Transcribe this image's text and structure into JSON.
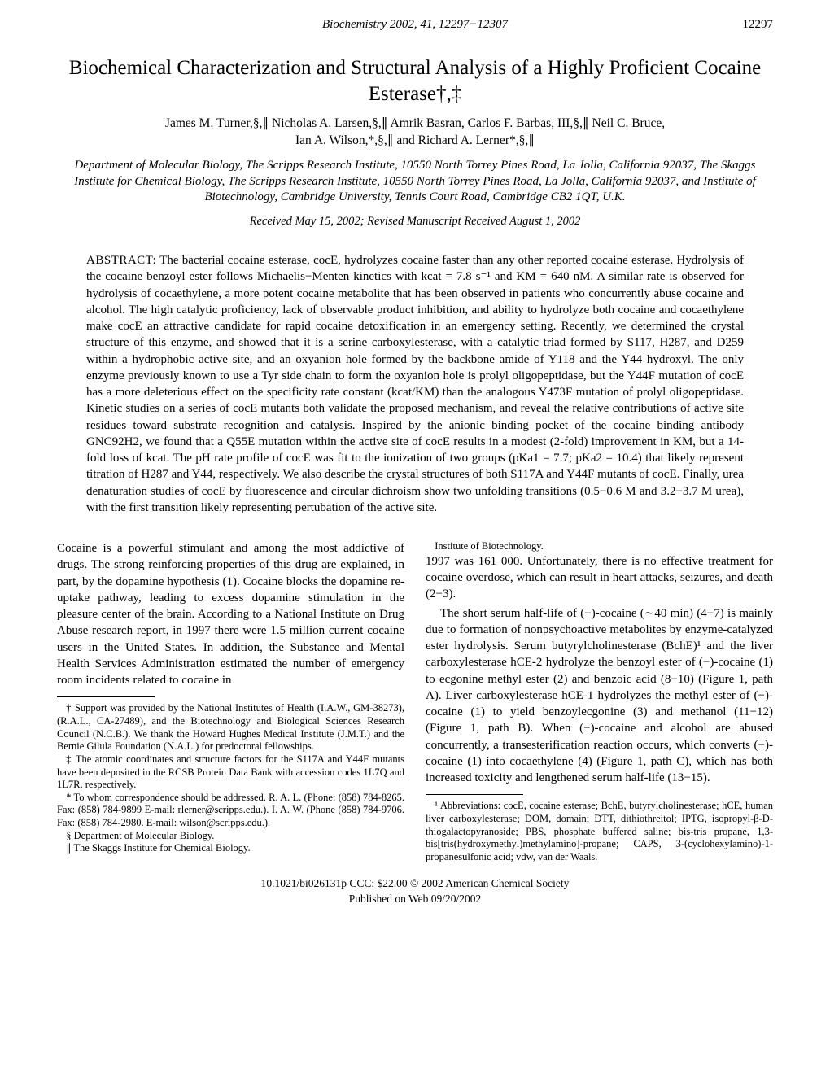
{
  "header": {
    "journal_line": "Biochemistry 2002, 41, 12297−12307",
    "page_number": "12297"
  },
  "title": "Biochemical Characterization and Structural Analysis of a Highly Proficient Cocaine Esterase†,‡",
  "authors_line1": "James M. Turner,§,∥ Nicholas A. Larsen,§,∥ Amrik Basran,  Carlos F. Barbas, III,§,∥ Neil C. Bruce,",
  "authors_line2": "Ian A. Wilson,*,§,∥ and Richard A. Lerner*,§,∥",
  "affiliations": "Department of Molecular Biology, The Scripps Research Institute, 10550 North Torrey Pines Road, La Jolla, California 92037, The Skaggs Institute for Chemical Biology, The Scripps Research Institute, 10550 North Torrey Pines Road, La Jolla, California 92037, and Institute of Biotechnology, Cambridge University, Tennis Court Road, Cambridge CB2 1QT, U.K.",
  "received": "Received May 15, 2002; Revised Manuscript Received August 1, 2002",
  "abstract_label": "ABSTRACT:",
  "abstract": "The bacterial cocaine esterase, cocE, hydrolyzes cocaine faster than any other reported cocaine esterase. Hydrolysis of the cocaine benzoyl ester follows Michaelis−Menten kinetics with kcat = 7.8 s⁻¹ and KM = 640 nM. A similar rate is observed for hydrolysis of cocaethylene, a more potent cocaine metabolite that has been observed in patients who concurrently abuse cocaine and alcohol. The high catalytic proficiency, lack of observable product inhibition, and ability to hydrolyze both cocaine and cocaethylene make cocE an attractive candidate for rapid cocaine detoxification in an emergency setting. Recently, we determined the crystal structure of this enzyme, and showed that it is a serine carboxylesterase, with a catalytic triad formed by S117, H287, and D259 within a hydrophobic active site, and an oxyanion hole formed by the backbone amide of Y118 and the Y44 hydroxyl. The only enzyme previously known to use a Tyr side chain to form the oxyanion hole is prolyl oligopeptidase, but the Y44F mutation of cocE has a more deleterious effect on the specificity rate constant (kcat/KM) than the analogous Y473F mutation of prolyl oligopeptidase. Kinetic studies on a series of cocE mutants both validate the proposed mechanism, and reveal the relative contributions of active site residues toward substrate recognition and catalysis. Inspired by the anionic binding pocket of the cocaine binding antibody GNC92H2, we found that a Q55E mutation within the active site of cocE results in a modest (2-fold) improvement in KM, but a 14-fold loss of kcat. The pH rate profile of cocE was fit to the ionization of two groups (pKa1 = 7.7; pKa2 = 10.4) that likely represent titration of H287 and Y44, respectively. We also describe the crystal structures of both S117A and Y44F mutants of cocE. Finally, urea denaturation studies of cocE by fluorescence and circular dichroism show two unfolding transitions (0.5−0.6 M and 3.2−3.7 M urea), with the first transition likely representing pertubation of the active site.",
  "body": {
    "p1": "Cocaine is a powerful stimulant and among the most addictive of drugs. The strong reinforcing properties of this drug are explained, in part, by the dopamine hypothesis (1). Cocaine blocks the dopamine re-uptake pathway, leading to excess dopamine stimulation in the pleasure center of the brain. According to a National Institute on Drug Abuse research report, in 1997 there were 1.5 million current cocaine users in the United States. In addition, the Substance and Mental Health Services Administration estimated the number of emergency room incidents related to cocaine in",
    "p2": "1997 was 161 000. Unfortunately, there is no effective treatment for cocaine overdose, which can result in heart attacks, seizures, and death (2−3).",
    "p3": "The short serum half-life of (−)-cocaine (∼40 min) (4−7) is mainly due to formation of nonpsychoactive metabolites by enzyme-catalyzed ester hydrolysis. Serum butyrylcholinesterase (BchE)¹ and the liver carboxylesterase hCE-2 hydrolyze the benzoyl ester of (−)-cocaine (1) to ecgonine methyl ester (2) and benzoic acid (8−10) (Figure 1, path A). Liver carboxylesterase hCE-1 hydrolyzes the methyl ester of (−)-cocaine (1) to yield benzoylecgonine (3) and methanol (11−12) (Figure 1, path B). When (−)-cocaine and alcohol are abused concurrently, a transesterification reaction occurs, which converts (−)-cocaine (1) into cocaethylene (4) (Figure 1, path C), which has both increased toxicity and lengthened serum half-life (13−15)."
  },
  "footnotes_left": {
    "f1": "† Support was provided by the National Institutes of Health (I.A.W., GM-38273), (R.A.L., CA-27489), and the Biotechnology and Biological Sciences Research Council (N.C.B.). We thank the Howard Hughes Medical Institute (J.M.T.) and the Bernie Gilula Foundation (N.A.L.) for predoctoral fellowships.",
    "f2": "‡ The atomic coordinates and structure factors for the S117A and Y44F mutants have been deposited in the RCSB Protein Data Bank with accession codes 1L7Q and 1L7R, respectively.",
    "f3": "* To whom correspondence should be addressed. R. A. L. (Phone: (858) 784-8265. Fax: (858) 784-9899 E-mail: rlerner@scripps.edu.). I. A. W. (Phone (858) 784-9706. Fax: (858) 784-2980. E-mail: wilson@scripps.edu.).",
    "f4": "§ Department of Molecular Biology.",
    "f5": "∥ The Skaggs Institute for Chemical Biology.",
    "f6": "Institute of Biotechnology."
  },
  "footnotes_right": {
    "f1": "¹ Abbreviations: cocE, cocaine esterase; BchE, butyrylcholinesterase; hCE, human liver carboxylesterase; DOM, domain; DTT, dithiothreitol; IPTG, isopropyl-β-D-thiogalactopyranoside; PBS, phosphate buffered saline; bis-tris propane, 1,3-bis[tris(hydroxymethyl)methylamino]-propane; CAPS, 3-(cyclohexylamino)-1-propanesulfonic acid; vdw, van der Waals."
  },
  "bottom": {
    "line1": "10.1021/bi026131p CCC: $22.00     © 2002 American Chemical Society",
    "line2": "Published on Web 09/20/2002"
  }
}
